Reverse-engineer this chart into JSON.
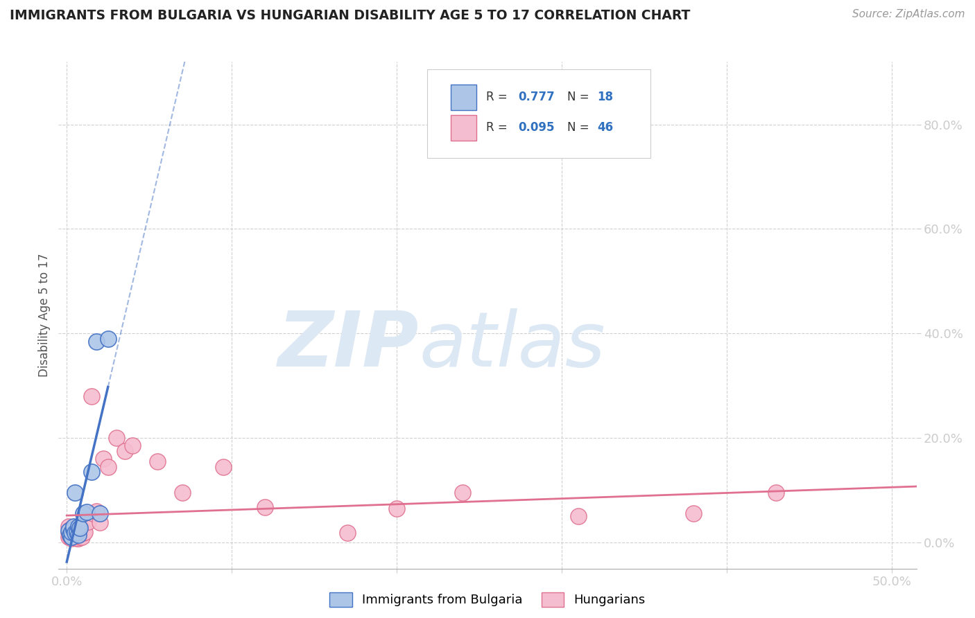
{
  "title": "IMMIGRANTS FROM BULGARIA VS HUNGARIAN DISABILITY AGE 5 TO 17 CORRELATION CHART",
  "source": "Source: ZipAtlas.com",
  "ylabel": "Disability Age 5 to 17",
  "xlim": [
    -0.005,
    0.515
  ],
  "ylim": [
    -0.05,
    0.92
  ],
  "xtick_positions": [
    0.0,
    0.1,
    0.2,
    0.3,
    0.4,
    0.5
  ],
  "xticklabels": [
    "0.0%",
    "",
    "",
    "",
    "",
    "50.0%"
  ],
  "ytick_positions": [
    0.0,
    0.2,
    0.4,
    0.6,
    0.8
  ],
  "yticklabels_right": [
    "0.0%",
    "20.0%",
    "40.0%",
    "60.0%",
    "80.0%"
  ],
  "bg_color": "#ffffff",
  "grid_color": "#d0d0d0",
  "bulgaria_color": "#adc6e8",
  "bulgaria_edge": "#4472c4",
  "hungary_color": "#f5bdd0",
  "hungary_edge": "#e07090",
  "legend_color": "#3070c0",
  "bulgaria_x": [
    0.001,
    0.002,
    0.003,
    0.003,
    0.004,
    0.004,
    0.005,
    0.005,
    0.006,
    0.007,
    0.007,
    0.008,
    0.01,
    0.012,
    0.015,
    0.018,
    0.02,
    0.025
  ],
  "bulgaria_y": [
    0.022,
    0.015,
    0.01,
    0.02,
    0.025,
    0.03,
    0.018,
    0.095,
    0.02,
    0.015,
    0.03,
    0.028,
    0.055,
    0.058,
    0.135,
    0.385,
    0.055,
    0.39
  ],
  "hungary_x": [
    0.001,
    0.001,
    0.001,
    0.002,
    0.002,
    0.002,
    0.003,
    0.003,
    0.003,
    0.004,
    0.004,
    0.005,
    0.005,
    0.006,
    0.006,
    0.006,
    0.007,
    0.007,
    0.007,
    0.008,
    0.008,
    0.009,
    0.009,
    0.01,
    0.01,
    0.011,
    0.013,
    0.015,
    0.016,
    0.018,
    0.02,
    0.022,
    0.025,
    0.03,
    0.035,
    0.04,
    0.055,
    0.07,
    0.095,
    0.12,
    0.17,
    0.2,
    0.24,
    0.31,
    0.38,
    0.43
  ],
  "hungary_y": [
    0.03,
    0.02,
    0.01,
    0.025,
    0.018,
    0.012,
    0.022,
    0.015,
    0.008,
    0.025,
    0.012,
    0.02,
    0.012,
    0.025,
    0.015,
    0.008,
    0.025,
    0.015,
    0.008,
    0.025,
    0.01,
    0.022,
    0.01,
    0.025,
    0.018,
    0.02,
    0.04,
    0.28,
    0.055,
    0.06,
    0.038,
    0.16,
    0.145,
    0.2,
    0.175,
    0.185,
    0.155,
    0.095,
    0.145,
    0.068,
    0.018,
    0.065,
    0.095,
    0.05,
    0.055,
    0.095
  ],
  "watermark_zip": "ZIP",
  "watermark_atlas": "atlas",
  "watermark_color": "#dde8f5",
  "watermark_fontsize": 80
}
